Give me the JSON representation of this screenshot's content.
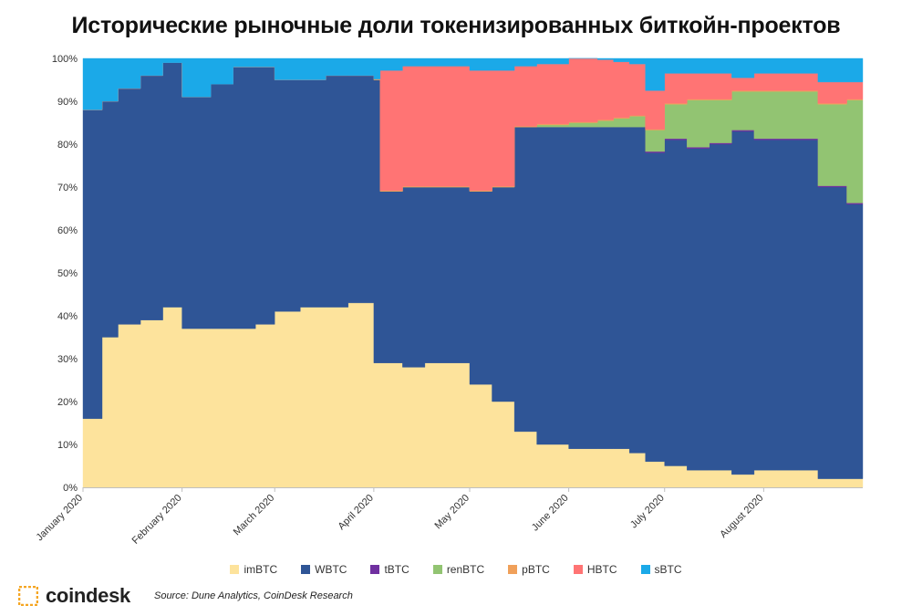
{
  "page": {
    "brand": "coindesk",
    "source": "Source: Dune Analytics, CoinDesk Research"
  },
  "chart_data": {
    "type": "area",
    "stacked": true,
    "normalized_percent": true,
    "title": "Исторические рыночные доли токенизированных биткойн-проектов",
    "ylim": [
      0,
      100
    ],
    "yticks": [
      "0%",
      "10%",
      "20%",
      "30%",
      "40%",
      "50%",
      "60%",
      "70%",
      "80%",
      "90%",
      "100%"
    ],
    "xticks": [
      "January 2020",
      "February 2020",
      "March 2020",
      "April 2020",
      "May 2020",
      "June 2020",
      "July 2020",
      "August 2020"
    ],
    "legend_position": "bottom",
    "x": [
      "2020-01-01",
      "2020-01-07",
      "2020-01-12",
      "2020-01-19",
      "2020-01-26",
      "2020-02-01",
      "2020-02-10",
      "2020-02-17",
      "2020-02-24",
      "2020-03-01",
      "2020-03-09",
      "2020-03-17",
      "2020-03-24",
      "2020-04-01",
      "2020-04-03",
      "2020-04-10",
      "2020-04-17",
      "2020-04-24",
      "2020-05-01",
      "2020-05-08",
      "2020-05-15",
      "2020-05-22",
      "2020-06-01",
      "2020-06-10",
      "2020-06-15",
      "2020-06-20",
      "2020-06-25",
      "2020-07-01",
      "2020-07-08",
      "2020-07-15",
      "2020-07-22",
      "2020-07-29",
      "2020-08-05",
      "2020-08-12",
      "2020-08-18",
      "2020-08-23",
      "2020-08-27",
      "2020-09-01"
    ],
    "series": [
      {
        "name": "imBTC",
        "color": "#fde39c",
        "values": [
          16,
          35,
          38,
          39,
          42,
          37,
          37,
          37,
          38,
          41,
          42,
          42,
          43,
          29,
          29,
          28,
          29,
          29,
          24,
          20,
          13,
          10,
          9,
          9,
          9,
          8,
          6,
          5,
          4,
          4,
          3,
          4,
          4,
          4,
          2,
          2,
          2,
          2
        ]
      },
      {
        "name": "WBTC",
        "color": "#2f5596",
        "values": [
          72,
          55,
          55,
          57,
          57,
          54,
          57,
          61,
          60,
          54,
          53,
          54,
          53,
          66,
          40,
          42,
          41,
          41,
          45,
          50,
          71,
          74,
          75,
          75,
          75,
          76,
          72,
          76,
          75,
          76,
          80,
          77,
          77,
          77,
          68,
          68,
          64,
          64
        ]
      },
      {
        "name": "tBTC",
        "color": "#7030a0",
        "values": [
          0,
          0,
          0,
          0,
          0,
          0,
          0,
          0,
          0,
          0,
          0,
          0,
          0,
          0,
          0,
          0,
          0,
          0,
          0,
          0,
          0,
          0,
          0,
          0,
          0,
          0,
          0.3,
          0.3,
          0.3,
          0.3,
          0.3,
          0.3,
          0.3,
          0.3,
          0.3,
          0.3,
          0.3,
          0.3
        ]
      },
      {
        "name": "renBTC",
        "color": "#92c472",
        "values": [
          0,
          0,
          0,
          0,
          0,
          0,
          0,
          0,
          0,
          0,
          0,
          0,
          0,
          0,
          0,
          0,
          0,
          0,
          0,
          0,
          0,
          0.5,
          1,
          1.5,
          2,
          2.5,
          5,
          8,
          11,
          10,
          9,
          11,
          11,
          11,
          19,
          19,
          24,
          24
        ]
      },
      {
        "name": "pBTC",
        "color": "#f0a05a",
        "values": [
          0,
          0,
          0,
          0,
          0,
          0,
          0,
          0,
          0,
          0,
          0,
          0,
          0,
          0.2,
          0.2,
          0.2,
          0.2,
          0.2,
          0.2,
          0.2,
          0.2,
          0.2,
          0.2,
          0.2,
          0.2,
          0.2,
          0.2,
          0.2,
          0.2,
          0.2,
          0.2,
          0.2,
          0.2,
          0.2,
          0.2,
          0.2,
          0.2,
          0.2
        ]
      },
      {
        "name": "HBTC",
        "color": "#ff7474",
        "values": [
          0,
          0,
          0,
          0,
          0,
          0,
          0,
          0,
          0,
          0,
          0,
          0,
          0,
          0,
          28,
          28,
          28,
          28,
          28,
          27,
          14,
          14,
          15,
          14,
          13,
          12,
          9,
          7,
          6,
          6,
          3,
          4,
          4,
          4,
          5,
          5,
          4,
          4
        ]
      },
      {
        "name": "sBTC",
        "color": "#1ba9e8",
        "values": [
          12,
          10,
          7,
          4,
          1,
          9,
          6,
          2,
          2,
          5,
          5,
          4,
          4,
          4.8,
          2.8,
          1.8,
          1.8,
          1.8,
          2.8,
          2.8,
          1.8,
          1.3,
          -0.2,
          0.3,
          0.8,
          1.3,
          7.5,
          3.5,
          3.5,
          3.5,
          4.5,
          3.5,
          3.5,
          3.5,
          5.5,
          5.5,
          5.5,
          5.5
        ]
      }
    ]
  }
}
